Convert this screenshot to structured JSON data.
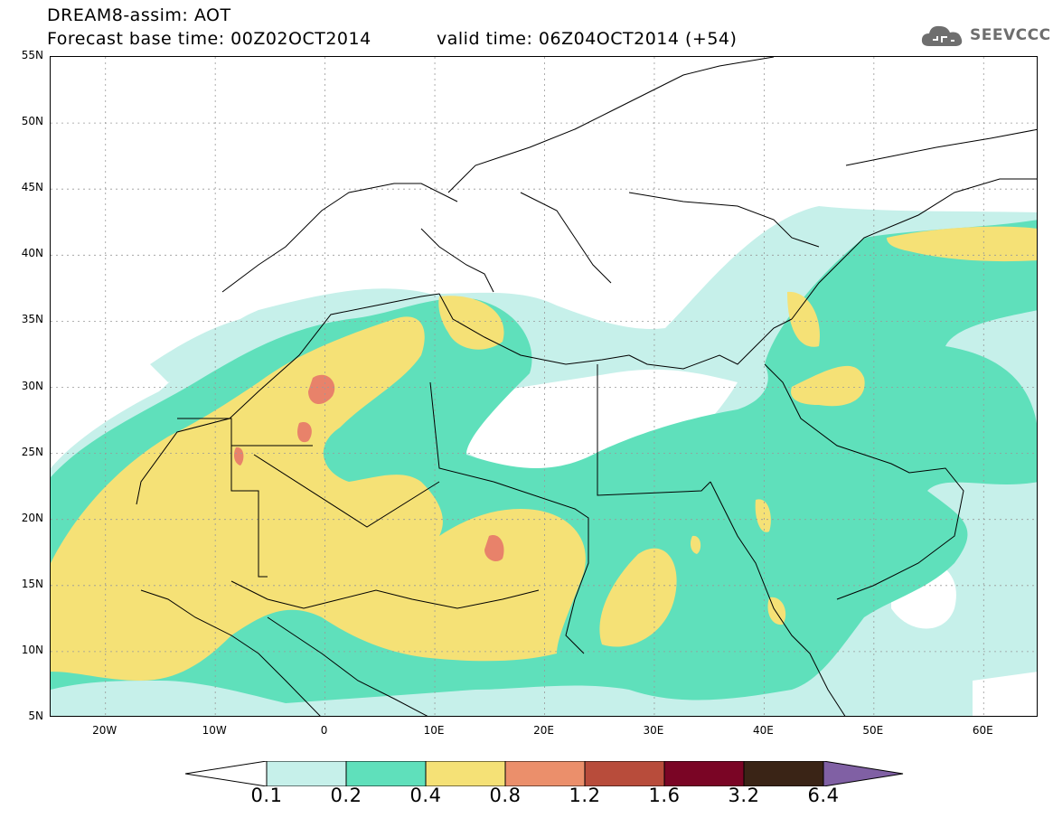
{
  "header": {
    "title": "DREAM8-assim: AOT",
    "forecast_base": "Forecast base time: 00Z02OCT2014",
    "valid_time": "valid time: 06Z04OCT2014 (+54)"
  },
  "logo": {
    "text": "SEEVCCC",
    "icon": "cloud-icon"
  },
  "map": {
    "lat_labels": [
      "55N",
      "50N",
      "45N",
      "40N",
      "35N",
      "30N",
      "25N",
      "20N",
      "15N",
      "10N",
      "5N"
    ],
    "lon_labels": [
      "20W",
      "10W",
      "0",
      "10E",
      "20E",
      "30E",
      "40E",
      "50E",
      "60E"
    ],
    "lon_range": [
      -25,
      65
    ],
    "lat_range": [
      5,
      55
    ]
  },
  "colorbar": {
    "levels": [
      "0.1",
      "0.2",
      "0.4",
      "0.8",
      "1.2",
      "1.6",
      "3.2",
      "6.4"
    ],
    "colors": [
      "#ffffff",
      "#c6f0ea",
      "#5fe0bb",
      "#f5e176",
      "#eb8f6b",
      "#b84c3b",
      "#7a0525",
      "#3a2416",
      "#8060a4"
    ]
  },
  "shading_colors": {
    "light": "#c6f0ea",
    "teal": "#5fe0bb",
    "yellow": "#f5e176",
    "orange": "#e8826a",
    "border": "#000000",
    "grid": "#999999"
  }
}
